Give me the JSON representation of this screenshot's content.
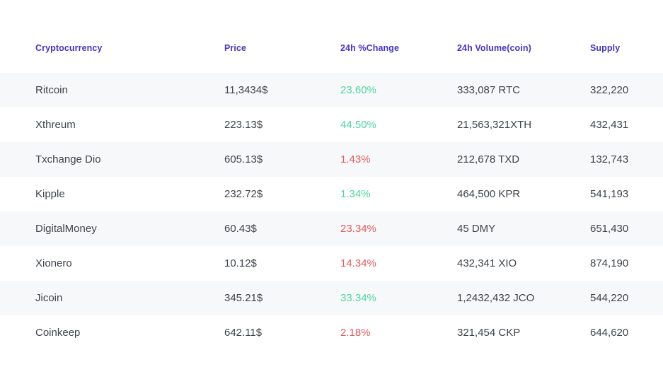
{
  "colors": {
    "page_bg": "#ffffff",
    "header_text": "#4534c9",
    "body_text": "#3e444b",
    "positive": "#4fd7a0",
    "negative": "#e25c5c",
    "stripe": "#f7f8f9"
  },
  "table": {
    "columns": [
      {
        "label": "Cryptocurrency"
      },
      {
        "label": "Price"
      },
      {
        "label": "24h %Change"
      },
      {
        "label": "24h Volume(coin)"
      },
      {
        "label": "Supply"
      }
    ],
    "rows": [
      {
        "name": "Ritcoin",
        "price": "11,3434$",
        "change": "23.60%",
        "trend": "up",
        "volume": "333,087 RTC",
        "supply": "322,220"
      },
      {
        "name": "Xthreum",
        "price": "223.13$",
        "change": "44.50%",
        "trend": "up",
        "volume": "21,563,321XTH",
        "supply": "432,431"
      },
      {
        "name": "Txchange Dio",
        "price": "605.13$",
        "change": "1.43%",
        "trend": "down",
        "volume": "212,678 TXD",
        "supply": "132,743"
      },
      {
        "name": "Kipple",
        "price": "232.72$",
        "change": "1.34%",
        "trend": "up",
        "volume": "464,500 KPR",
        "supply": "541,193"
      },
      {
        "name": "DigitalMoney",
        "price": "60.43$",
        "change": "23.34%",
        "trend": "down",
        "volume": "45 DMY",
        "supply": "651,430"
      },
      {
        "name": "Xionero",
        "price": "10.12$",
        "change": "14.34%",
        "trend": "down",
        "volume": "432,341 XIO",
        "supply": "874,190"
      },
      {
        "name": "Jicoin",
        "price": "345.21$",
        "change": "33.34%",
        "trend": "up",
        "volume": "1,2432,432 JCO",
        "supply": "544,220"
      },
      {
        "name": "Coinkeep",
        "price": "642.11$",
        "change": "2.18%",
        "trend": "down",
        "volume": "321,454 CKP",
        "supply": "644,620"
      }
    ]
  }
}
